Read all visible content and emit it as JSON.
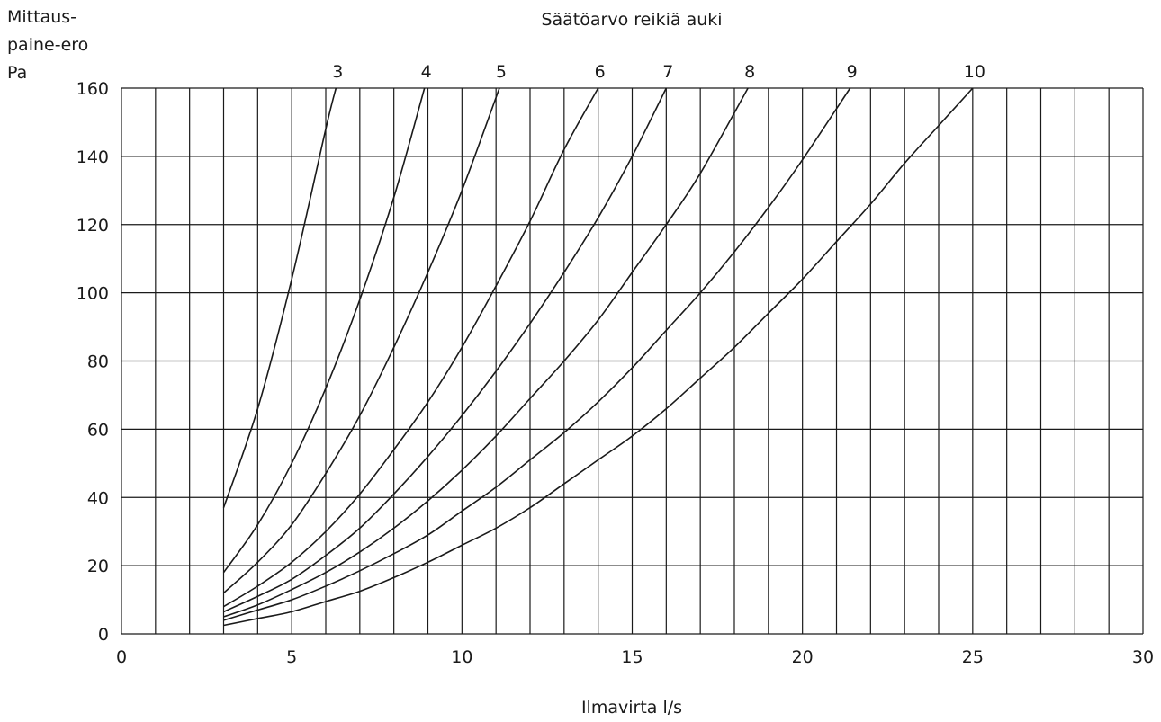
{
  "chart_data": {
    "type": "line",
    "title": "Säätöarvo reikiä auki",
    "xlabel": "Ilmavirta l/s",
    "ylabel_lines": [
      "Mittaus-",
      "paine-ero",
      "Pa"
    ],
    "xlim": [
      0,
      30
    ],
    "ylim": [
      0,
      160
    ],
    "x_ticks": [
      0,
      5,
      10,
      15,
      20,
      25,
      30
    ],
    "y_ticks": [
      0,
      20,
      40,
      60,
      80,
      100,
      120,
      140,
      160
    ],
    "x_grid_step": 1,
    "y_grid_step": 20,
    "grid": true,
    "series": [
      {
        "name": "3",
        "points": [
          [
            3,
            37
          ],
          [
            4,
            66
          ],
          [
            5,
            104
          ],
          [
            6,
            148
          ],
          [
            6.3,
            160
          ]
        ]
      },
      {
        "name": "4",
        "points": [
          [
            3,
            18
          ],
          [
            4,
            32
          ],
          [
            5,
            50
          ],
          [
            6,
            72
          ],
          [
            7,
            98
          ],
          [
            8,
            128
          ],
          [
            8.9,
            160
          ]
        ]
      },
      {
        "name": "5",
        "points": [
          [
            3,
            12
          ],
          [
            4,
            21
          ],
          [
            5,
            32
          ],
          [
            6,
            47
          ],
          [
            7,
            64
          ],
          [
            8,
            84
          ],
          [
            9,
            106
          ],
          [
            10,
            130
          ],
          [
            11.1,
            160
          ]
        ]
      },
      {
        "name": "6",
        "points": [
          [
            3,
            8
          ],
          [
            4,
            14
          ],
          [
            5,
            21
          ],
          [
            6,
            30
          ],
          [
            7,
            41
          ],
          [
            8,
            54
          ],
          [
            9,
            68
          ],
          [
            10,
            84
          ],
          [
            11,
            102
          ],
          [
            12,
            121
          ],
          [
            13,
            142
          ],
          [
            14,
            160
          ]
        ]
      },
      {
        "name": "7",
        "points": [
          [
            3,
            6.5
          ],
          [
            4,
            11
          ],
          [
            5,
            16
          ],
          [
            6,
            23
          ],
          [
            7,
            31
          ],
          [
            8,
            41
          ],
          [
            9,
            52
          ],
          [
            10,
            64
          ],
          [
            11,
            77
          ],
          [
            12,
            91
          ],
          [
            13,
            106
          ],
          [
            14,
            122
          ],
          [
            15,
            140
          ],
          [
            16,
            160
          ]
        ]
      },
      {
        "name": "8",
        "points": [
          [
            3,
            5
          ],
          [
            4,
            8.5
          ],
          [
            5,
            13
          ],
          [
            6,
            18
          ],
          [
            7,
            24
          ],
          [
            8,
            31
          ],
          [
            9,
            39
          ],
          [
            10,
            48
          ],
          [
            11,
            58
          ],
          [
            12,
            69
          ],
          [
            13,
            80
          ],
          [
            14,
            92
          ],
          [
            15,
            106
          ],
          [
            16,
            120
          ],
          [
            17,
            135
          ],
          [
            18.4,
            160
          ]
        ]
      },
      {
        "name": "9",
        "points": [
          [
            3,
            4
          ],
          [
            4,
            7
          ],
          [
            5,
            10
          ],
          [
            6,
            14
          ],
          [
            7,
            18.5
          ],
          [
            8,
            23.5
          ],
          [
            9,
            29
          ],
          [
            10,
            36
          ],
          [
            11,
            43
          ],
          [
            12,
            51
          ],
          [
            13,
            59
          ],
          [
            14,
            68
          ],
          [
            15,
            78
          ],
          [
            16,
            89
          ],
          [
            17,
            100
          ],
          [
            18,
            112
          ],
          [
            19,
            125
          ],
          [
            20,
            139
          ],
          [
            21.4,
            160
          ]
        ]
      },
      {
        "name": "10",
        "points": [
          [
            3,
            2.5
          ],
          [
            4,
            4.5
          ],
          [
            5,
            6.5
          ],
          [
            6,
            9.5
          ],
          [
            7,
            12.5
          ],
          [
            8,
            16.5
          ],
          [
            9,
            21
          ],
          [
            10,
            26
          ],
          [
            11,
            31
          ],
          [
            12,
            37
          ],
          [
            13,
            44
          ],
          [
            14,
            51
          ],
          [
            15,
            58
          ],
          [
            16,
            66
          ],
          [
            17,
            75
          ],
          [
            18,
            84
          ],
          [
            19,
            94
          ],
          [
            20,
            104
          ],
          [
            21,
            115
          ],
          [
            22,
            126
          ],
          [
            23,
            138
          ],
          [
            24,
            149
          ],
          [
            25,
            160
          ]
        ]
      }
    ]
  }
}
